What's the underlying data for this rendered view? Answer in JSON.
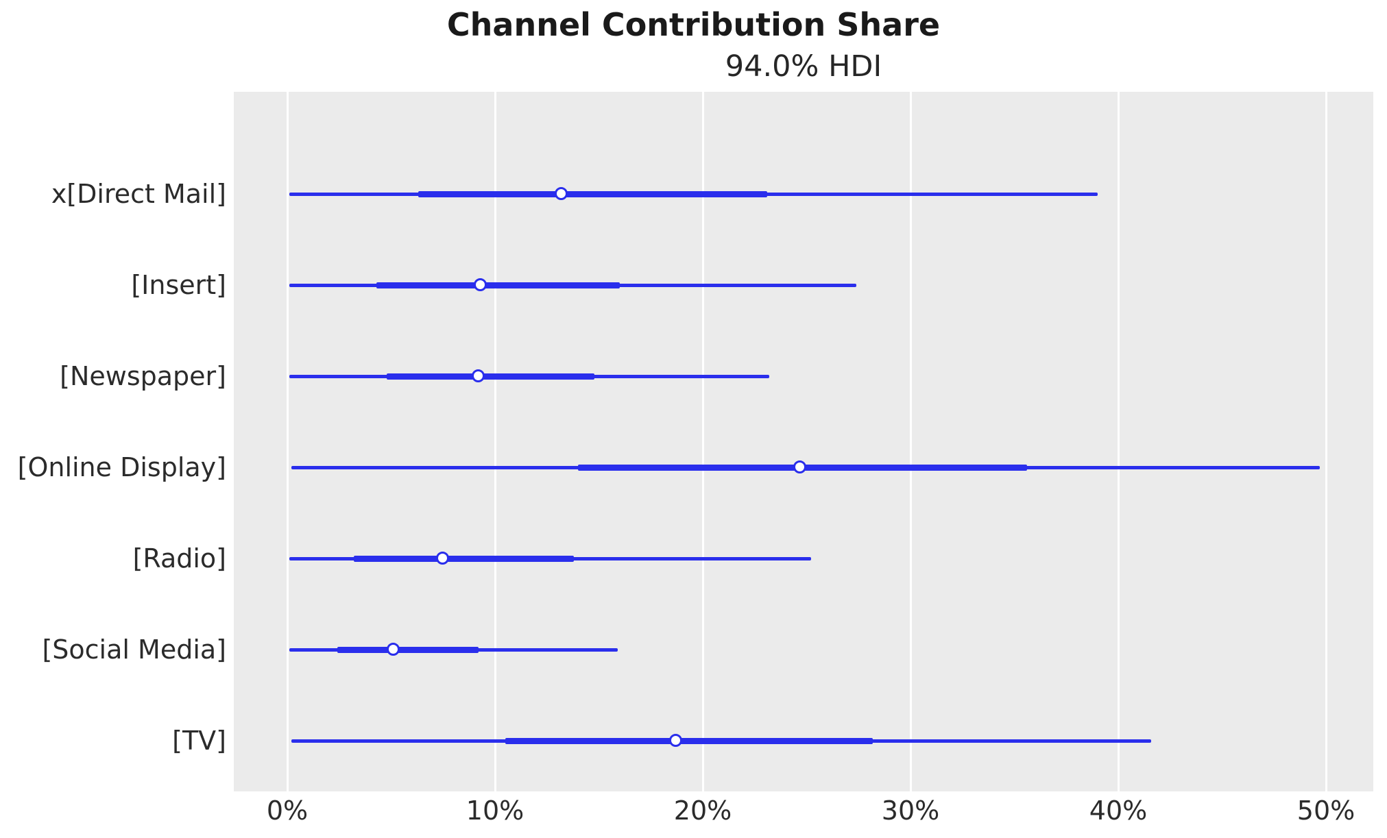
{
  "chart_data": {
    "type": "forest",
    "title": "Channel Contribution Share",
    "subtitle": "94.0% HDI",
    "hdi_probability": "94.0%",
    "xlabel": "",
    "ylabel": "",
    "x_unit": "percent",
    "xlim": [
      -2.6,
      52.3
    ],
    "x_ticks": [
      {
        "value": 0,
        "label": "0%"
      },
      {
        "value": 10,
        "label": "10%"
      },
      {
        "value": 20,
        "label": "20%"
      },
      {
        "value": 30,
        "label": "30%"
      },
      {
        "value": 40,
        "label": "40%"
      },
      {
        "value": 50,
        "label": "50%"
      }
    ],
    "grid": "vertical-white-on-gray",
    "legend": "none",
    "categories": [
      "x[Direct Mail]",
      "[Insert]",
      "[Newspaper]",
      "[Online Display]",
      "[Radio]",
      "[Social Media]",
      "[TV]"
    ],
    "series": [
      {
        "label": "x[Direct Mail]",
        "hdi_low": 0.1,
        "hdi_high": 39.0,
        "quartile_low": 6.3,
        "quartile_high": 23.1,
        "median": 13.2
      },
      {
        "label": "[Insert]",
        "hdi_low": 0.1,
        "hdi_high": 27.4,
        "quartile_low": 4.3,
        "quartile_high": 16.0,
        "median": 9.3
      },
      {
        "label": "[Newspaper]",
        "hdi_low": 0.1,
        "hdi_high": 23.2,
        "quartile_low": 4.8,
        "quartile_high": 14.8,
        "median": 9.2
      },
      {
        "label": "[Online Display]",
        "hdi_low": 0.2,
        "hdi_high": 49.7,
        "quartile_low": 14.0,
        "quartile_high": 35.6,
        "median": 24.7
      },
      {
        "label": "[Radio]",
        "hdi_low": 0.1,
        "hdi_high": 25.2,
        "quartile_low": 3.2,
        "quartile_high": 13.8,
        "median": 7.5
      },
      {
        "label": "[Social Media]",
        "hdi_low": 0.1,
        "hdi_high": 15.9,
        "quartile_low": 2.4,
        "quartile_high": 9.2,
        "median": 5.1
      },
      {
        "label": "[TV]",
        "hdi_low": 0.2,
        "hdi_high": 41.6,
        "quartile_low": 10.5,
        "quartile_high": 28.2,
        "median": 18.7
      }
    ],
    "style": {
      "accent_color": "#2a2eec",
      "plot_background": "#ebebeb",
      "grid_color": "#ffffff",
      "text_color": "#2b2b2b",
      "title_color": "#1a1a1a",
      "marker_face": "#ffffff"
    }
  }
}
